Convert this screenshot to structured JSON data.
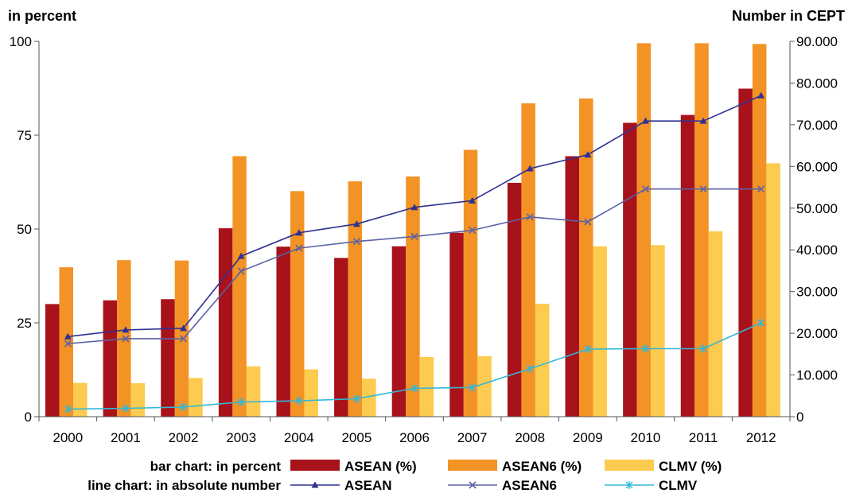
{
  "chart_data": {
    "type": "bar",
    "left_axis_title": "in percent",
    "right_axis_title": "Number in CEPT",
    "categories": [
      "2000",
      "2001",
      "2002",
      "2003",
      "2004",
      "2005",
      "2006",
      "2007",
      "2008",
      "2009",
      "2010",
      "2011",
      "2012"
    ],
    "left_ylim": [
      0,
      100
    ],
    "left_ticks": [
      0,
      25,
      50,
      75,
      100
    ],
    "left_tick_labels": [
      "0",
      "25",
      "50",
      "75",
      "100"
    ],
    "right_ylim": [
      0,
      90000
    ],
    "right_ticks": [
      0,
      10000,
      20000,
      30000,
      40000,
      50000,
      60000,
      70000,
      80000,
      90000
    ],
    "right_tick_labels": [
      "0",
      "10.000",
      "20.000",
      "30.000",
      "40.000",
      "50.000",
      "60.000",
      "70.000",
      "80.000",
      "90.000"
    ],
    "grid": false,
    "bar_series": [
      {
        "name": "ASEAN (%)",
        "color": "#A8121A",
        "values": [
          30,
          31,
          31.3,
          50.2,
          45.3,
          42.3,
          45.4,
          49,
          62.3,
          69.4,
          78.3,
          80.4,
          87.4
        ]
      },
      {
        "name": "ASEAN6 (%)",
        "color": "#F39325",
        "values": [
          39.8,
          41.7,
          41.6,
          69.4,
          60.1,
          62.7,
          64,
          71.1,
          83.5,
          84.8,
          99.5,
          99.5,
          99.3
        ]
      },
      {
        "name": "CLMV (%)",
        "color": "#FCCB4F",
        "values": [
          9,
          8.9,
          10.3,
          13.4,
          12.6,
          10.1,
          15.9,
          16.1,
          30.1,
          45.4,
          45.7,
          49.4,
          67.5
        ]
      }
    ],
    "line_series": [
      {
        "name": "ASEAN",
        "color": "#2E3192",
        "marker": "triangle",
        "values": [
          19200,
          20800,
          21200,
          38500,
          44100,
          46200,
          50200,
          51800,
          59500,
          62800,
          70900,
          70900,
          77000
        ]
      },
      {
        "name": "ASEAN6",
        "color": "#5B62A6",
        "marker": "x",
        "values": [
          17500,
          18700,
          18700,
          34900,
          40400,
          42000,
          43200,
          44700,
          47900,
          46700,
          54600,
          54600,
          54600
        ]
      },
      {
        "name": "CLMV",
        "color": "#33B8D8",
        "marker": "star",
        "values": [
          1800,
          2000,
          2300,
          3500,
          3800,
          4300,
          6800,
          7000,
          11500,
          16200,
          16300,
          16300,
          22500
        ]
      }
    ],
    "legend": {
      "bar_caption": "bar chart: in percent",
      "line_caption": "line chart: in absolute number",
      "placement": "bottom"
    }
  }
}
